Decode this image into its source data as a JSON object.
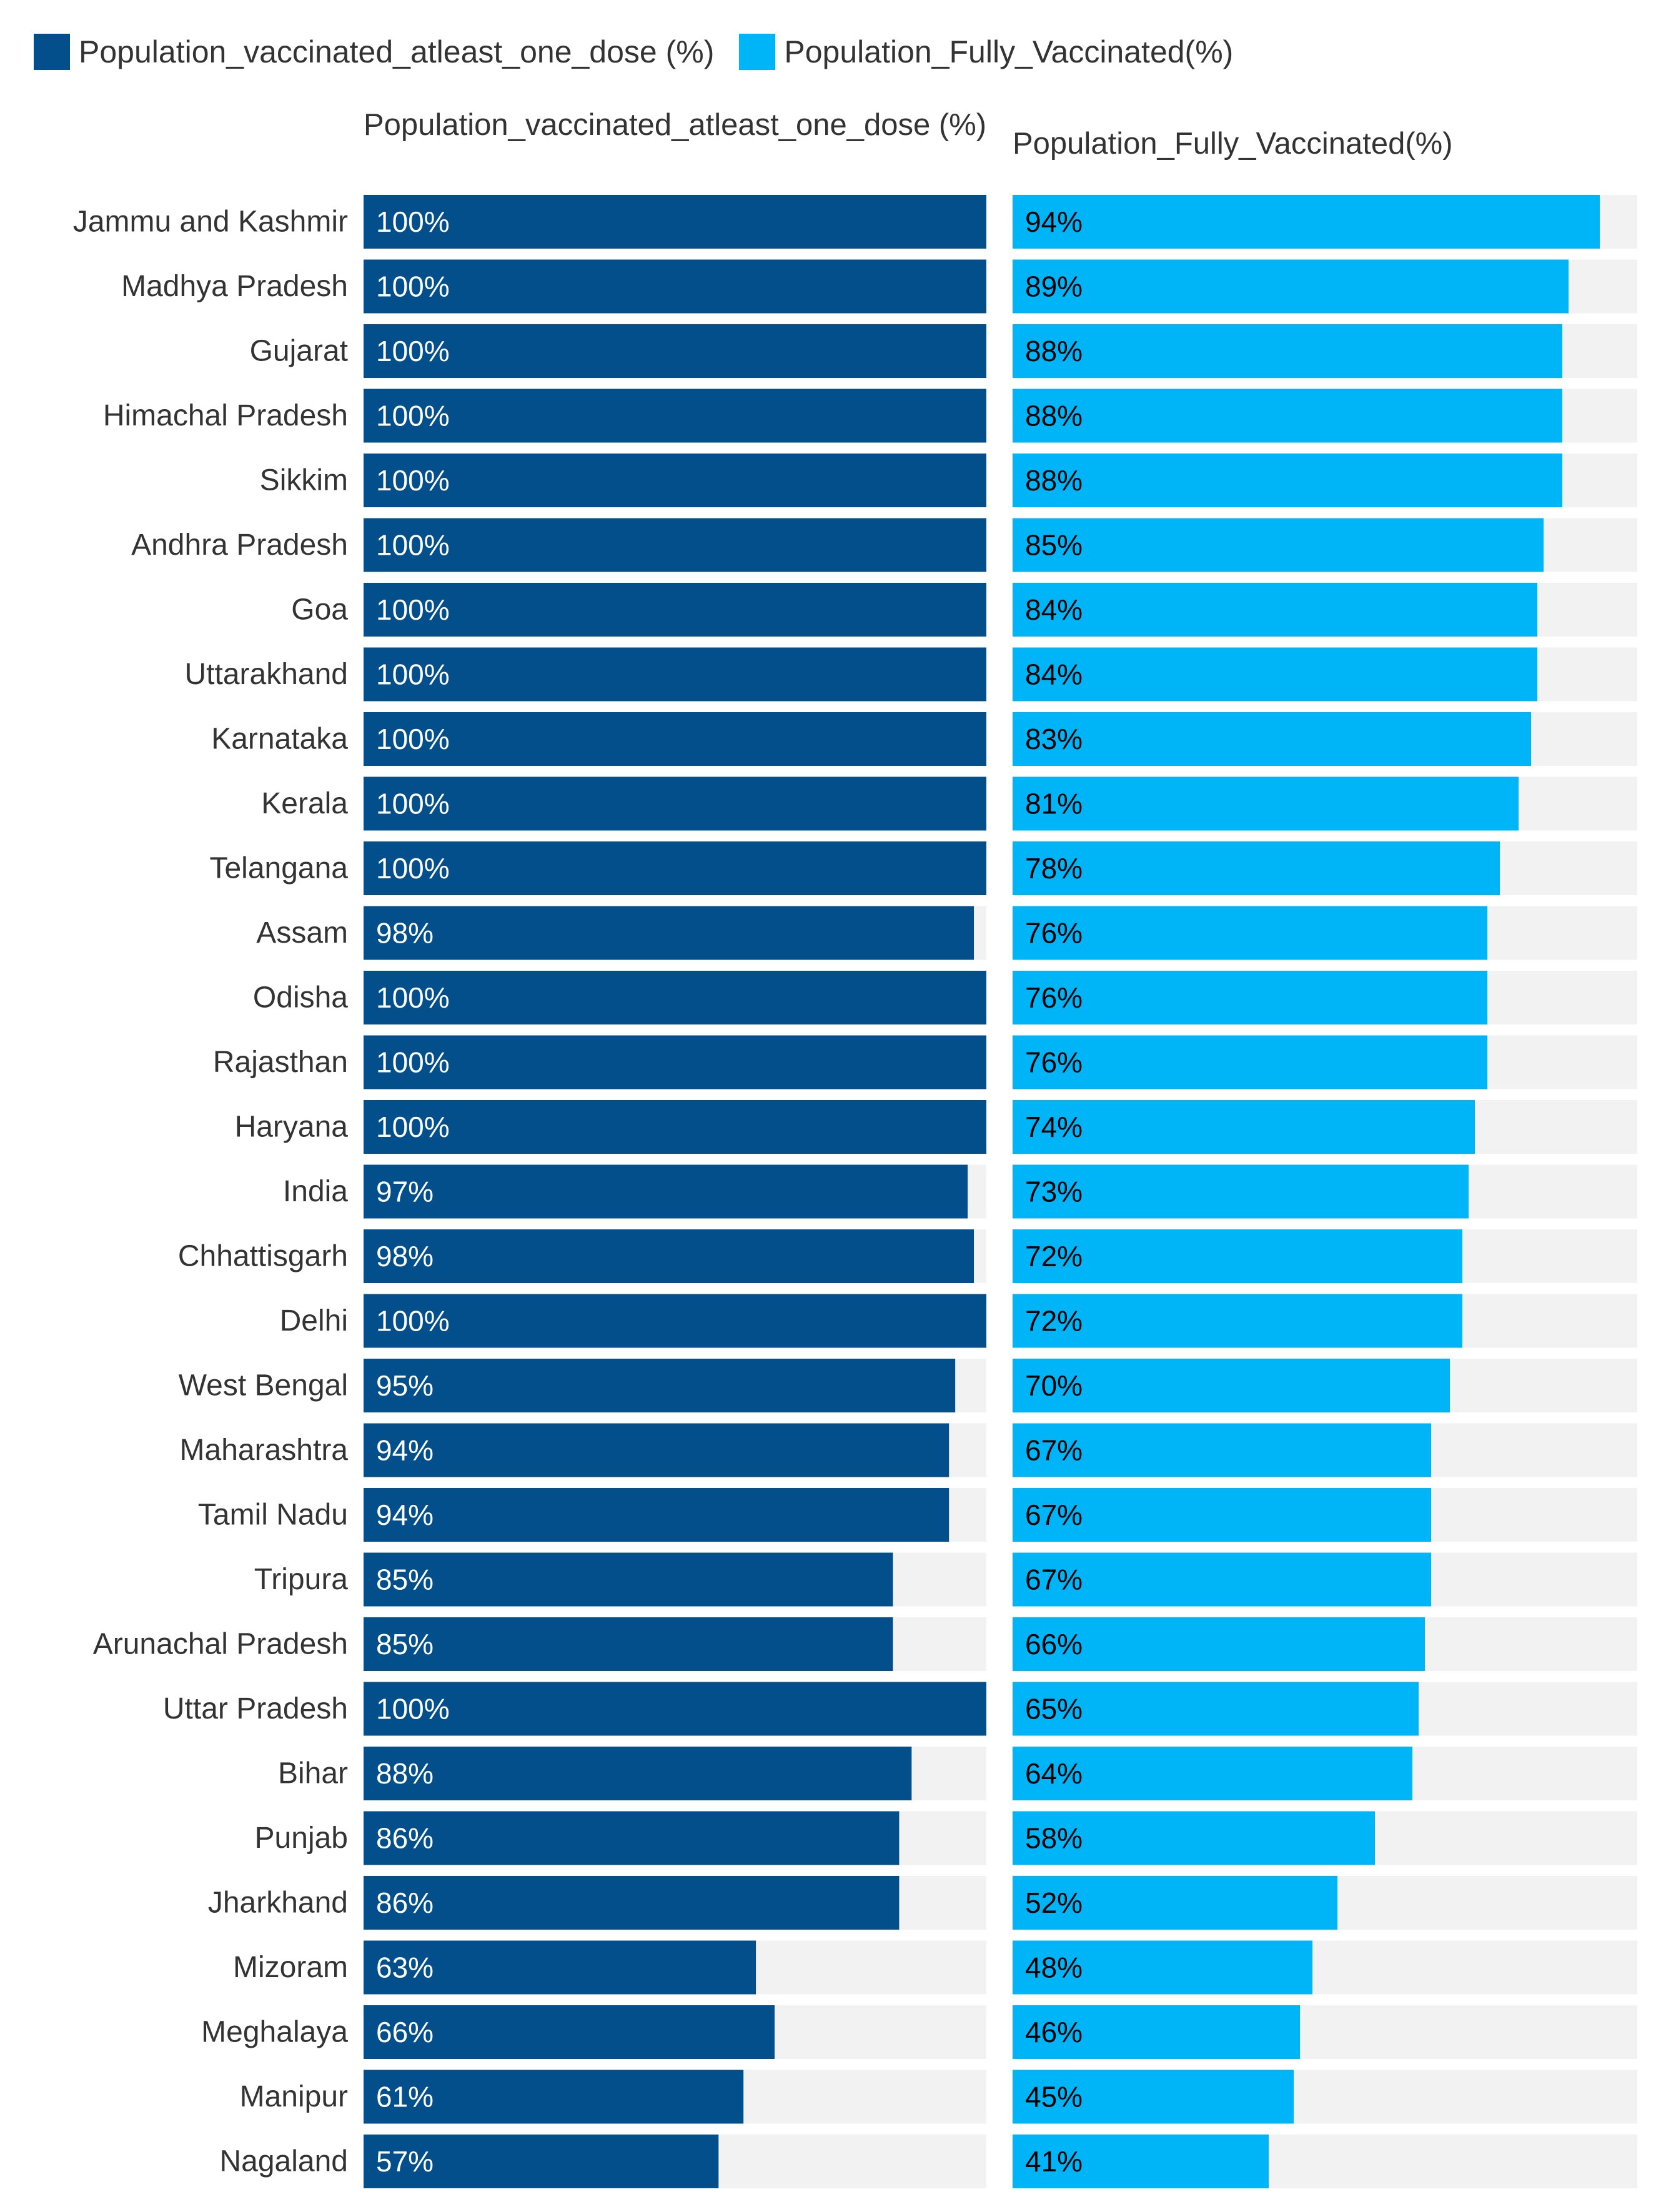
{
  "legend": {
    "series1": {
      "label": "Population_vaccinated_atleast_one_dose (%)",
      "color": "#024f8c"
    },
    "series2": {
      "label": "Population_Fully_Vaccinated(%)",
      "color": "#00b4f8"
    }
  },
  "headers": {
    "left": "Population_vaccinated_atleast_one_dose (%)",
    "right": "Population_Fully_Vaccinated(%)"
  },
  "colors": {
    "track": "#f2f2f2",
    "label_text": "#333333",
    "value_text": "#ffffff",
    "value_text_alt": "#000000"
  },
  "chart_data": {
    "type": "bar",
    "orientation": "horizontal",
    "value_suffix": "%",
    "xlim": [
      0,
      100
    ],
    "categories": [
      "Jammu and Kashmir",
      "Madhya Pradesh",
      "Gujarat",
      "Himachal Pradesh",
      "Sikkim",
      "Andhra Pradesh",
      "Goa",
      "Uttarakhand",
      "Karnataka",
      "Kerala",
      "Telangana",
      "Assam",
      "Odisha",
      "Rajasthan",
      "Haryana",
      "India",
      "Chhattisgarh",
      "Delhi",
      "West Bengal",
      "Maharashtra",
      "Tamil Nadu",
      "Tripura",
      "Arunachal Pradesh",
      "Uttar Pradesh",
      "Bihar",
      "Punjab",
      "Jharkhand",
      "Mizoram",
      "Meghalaya",
      "Manipur",
      "Nagaland"
    ],
    "series": [
      {
        "name": "Population_vaccinated_atleast_one_dose (%)",
        "values": [
          100,
          100,
          100,
          100,
          100,
          100,
          100,
          100,
          100,
          100,
          100,
          98,
          100,
          100,
          100,
          97,
          98,
          100,
          95,
          94,
          94,
          85,
          85,
          100,
          88,
          86,
          86,
          63,
          66,
          61,
          57
        ]
      },
      {
        "name": "Population_Fully_Vaccinated(%)",
        "values": [
          94,
          89,
          88,
          88,
          88,
          85,
          84,
          84,
          83,
          81,
          78,
          76,
          76,
          76,
          74,
          73,
          72,
          72,
          70,
          67,
          67,
          67,
          66,
          65,
          64,
          58,
          52,
          48,
          46,
          45,
          41
        ]
      }
    ]
  }
}
